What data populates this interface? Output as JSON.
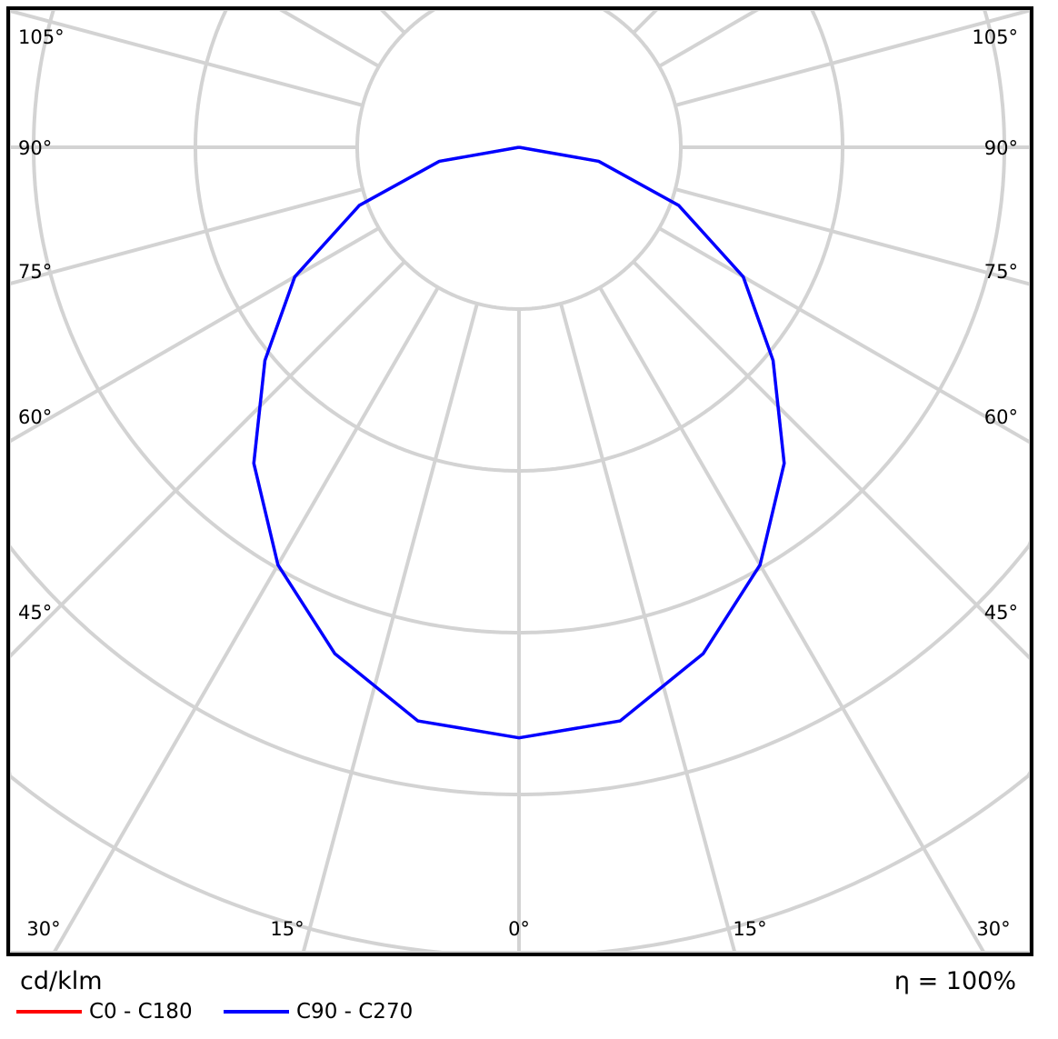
{
  "chart_data": {
    "type": "polar-line",
    "unit_label": "cd/klm",
    "efficiency_label": "η = 100%",
    "angle_labels_left": [
      "105°",
      "90°",
      "75°",
      "60°",
      "45°"
    ],
    "angle_labels_bottom": [
      "30°",
      "15°",
      "0°",
      "15°",
      "30°"
    ],
    "angle_labels_right": [
      "105°",
      "90°",
      "75°",
      "60°",
      "45°"
    ],
    "gamma_deg": [
      0,
      10,
      20,
      30,
      40,
      50,
      60,
      70,
      80,
      90
    ],
    "series": [
      {
        "name": "C0 - C180",
        "color": "#ff0000",
        "values": [
          365,
          360,
          333,
          298,
          255,
          205,
          160,
          105,
          50,
          0
        ]
      },
      {
        "name": "C90 - C270",
        "color": "#0000ff",
        "values": [
          365,
          360,
          333,
          298,
          255,
          205,
          160,
          105,
          50,
          0
        ]
      }
    ],
    "grid": true,
    "legend_position": "bottom-left"
  }
}
